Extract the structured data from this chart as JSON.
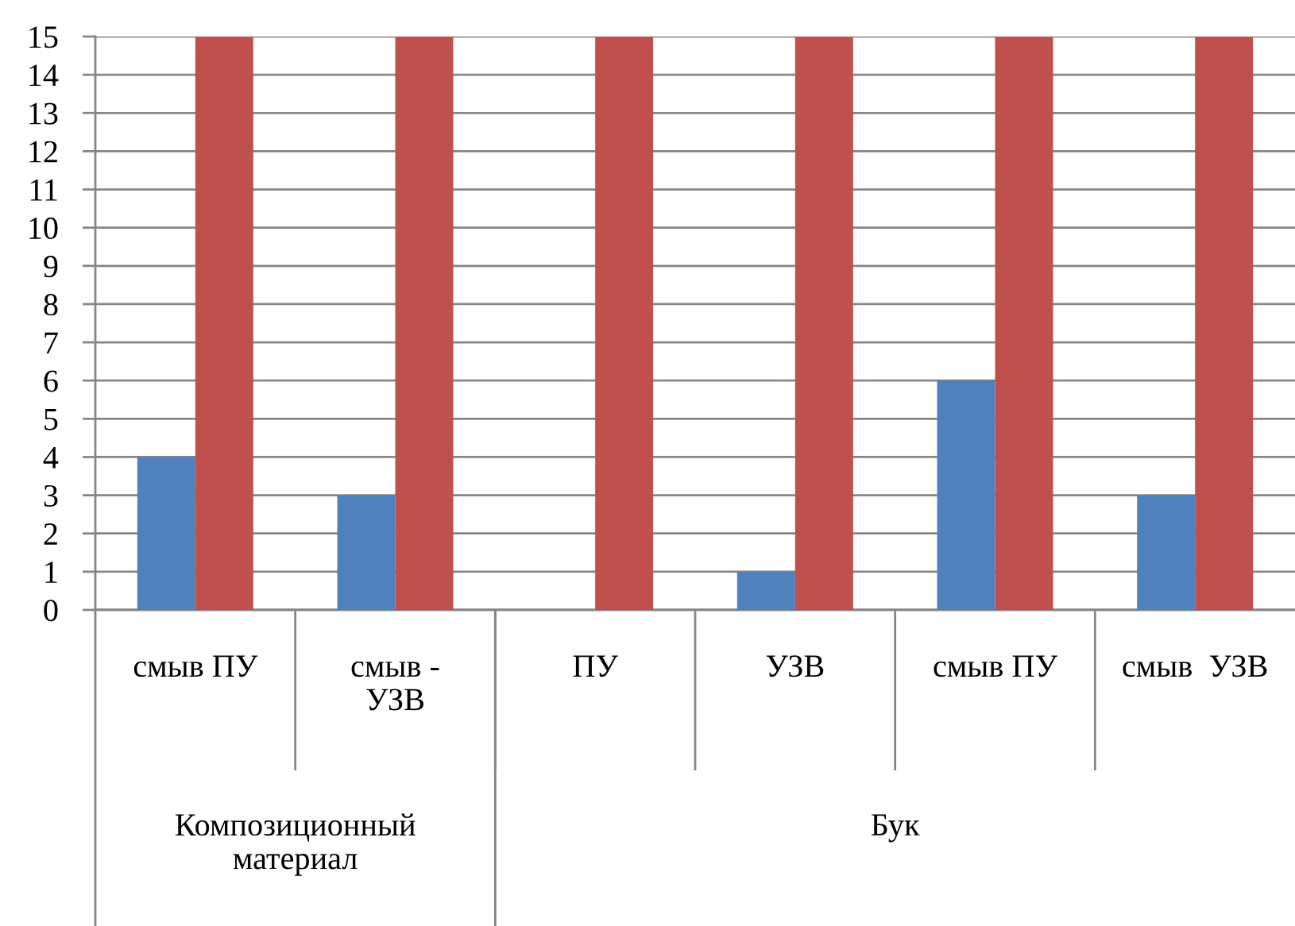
{
  "chart_data": {
    "type": "bar",
    "categories": [
      "смыв ПУ",
      "смыв -\nУЗВ",
      "ПУ",
      "УЗВ",
      "смыв ПУ",
      "смыв  УЗВ"
    ],
    "series": [
      {
        "color": "#4f81bd",
        "values": [
          4,
          3,
          null,
          1,
          6,
          3
        ]
      },
      {
        "color": "#c0504d",
        "values": [
          15,
          15,
          15,
          15,
          15,
          15
        ]
      }
    ],
    "ylim": [
      0,
      15
    ],
    "yticks": [
      0,
      1,
      2,
      3,
      4,
      5,
      6,
      7,
      8,
      9,
      10,
      11,
      12,
      13,
      14,
      15
    ],
    "grid": "y",
    "annotations": [
      "Композиционный\nматериал",
      "Бук"
    ]
  }
}
